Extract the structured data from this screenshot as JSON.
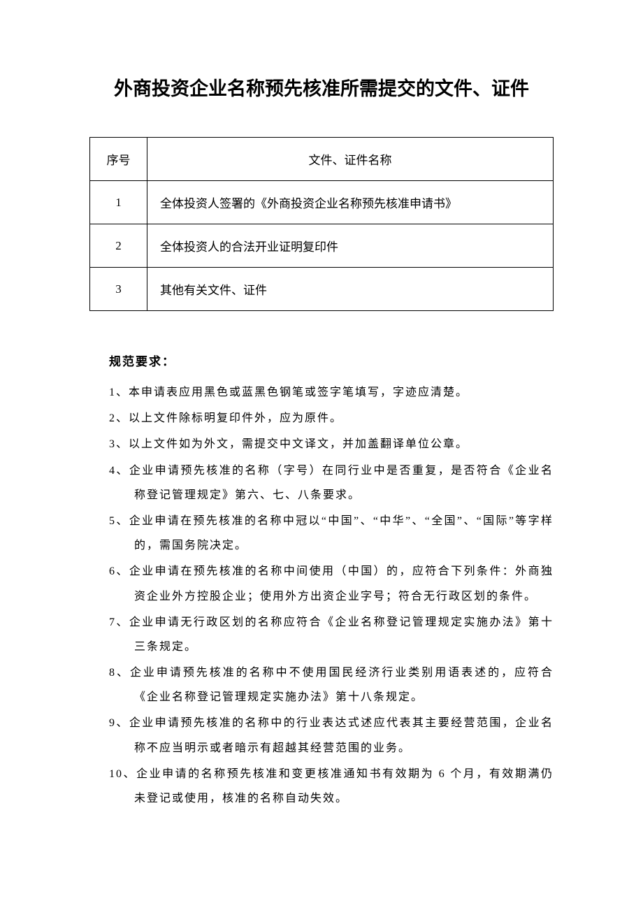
{
  "title": "外商投资企业名称预先核准所需提交的文件、证件",
  "table": {
    "headers": {
      "seq": "序号",
      "name": "文件、证件名称"
    },
    "rows": [
      {
        "seq": "1",
        "name": "全体投资人签署的《外商投资企业名称预先核准申请书》"
      },
      {
        "seq": "2",
        "name": "全体投资人的合法开业证明复印件"
      },
      {
        "seq": "3",
        "name": "其他有关文件、证件"
      }
    ]
  },
  "section_heading": "规范要求：",
  "rules": [
    {
      "num": "1、",
      "text": "本申请表应用黑色或蓝黑色钢笔或签字笔填写，字迹应清楚。"
    },
    {
      "num": "2、",
      "text": "以上文件除标明复印件外，应为原件。"
    },
    {
      "num": "3、",
      "text": "以上文件如为外文，需提交中文译文，并加盖翻译单位公章。"
    },
    {
      "num": "4、",
      "text": "企业申请预先核准的名称（字号）在同行业中是否重复，是否符合《企业名称登记管理规定》第六、七、八条要求。"
    },
    {
      "num": "5、",
      "text": "企业申请在预先核准的名称中冠以“中国”、“中华”、“全国”、“国际”等字样的，需国务院决定。"
    },
    {
      "num": "6、",
      "text": "企业申请在预先核准的名称中间使用（中国）的，应符合下列条件：外商独资企业外方控股企业；使用外方出资企业字号；符合无行政区划的条件。"
    },
    {
      "num": "7、",
      "text": "企业申请无行政区划的名称应符合《企业名称登记管理规定实施办法》第十三条规定。"
    },
    {
      "num": "8、",
      "text": "企业申请预先核准的名称中不使用国民经济行业类别用语表述的，应符合《企业名称登记管理规定实施办法》第十八条规定。"
    },
    {
      "num": "9、",
      "text": "企业申请预先核准的名称中的行业表达式述应代表其主要经营范围，企业名称不应当明示或者暗示有超越其经营范围的业务。"
    },
    {
      "num": "10、",
      "text": "企业申请的名称预先核准和变更核准通知书有效期为 6 个月，有效期满仍未登记或使用，核准的名称自动失效。"
    }
  ]
}
